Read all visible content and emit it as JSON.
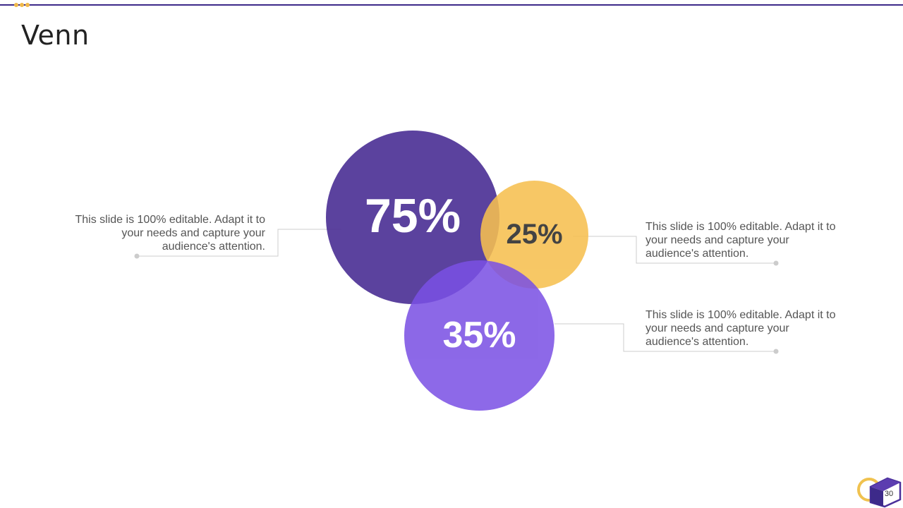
{
  "slide": {
    "title": "Venn",
    "page_number": "30"
  },
  "venn": {
    "sets": [
      {
        "label": "75%",
        "value": 75,
        "color": "#4f3497"
      },
      {
        "label": "25%",
        "value": 25,
        "color": "#f6c050"
      },
      {
        "label": "35%",
        "value": 35,
        "color": "#7a50e4"
      }
    ]
  },
  "descriptions": {
    "left": "This slide is 100% editable. Adapt it to your needs and capture your audience's attention.",
    "right_top": "This slide is 100% editable. Adapt it to your needs and capture your audience's attention.",
    "right_bottom": "This slide is 100% editable. Adapt it to your needs and capture your audience's attention."
  },
  "colors": {
    "accent_line": "#3d2a8a",
    "accent_dots": "#f0b94a",
    "connector": "#cccccc"
  }
}
